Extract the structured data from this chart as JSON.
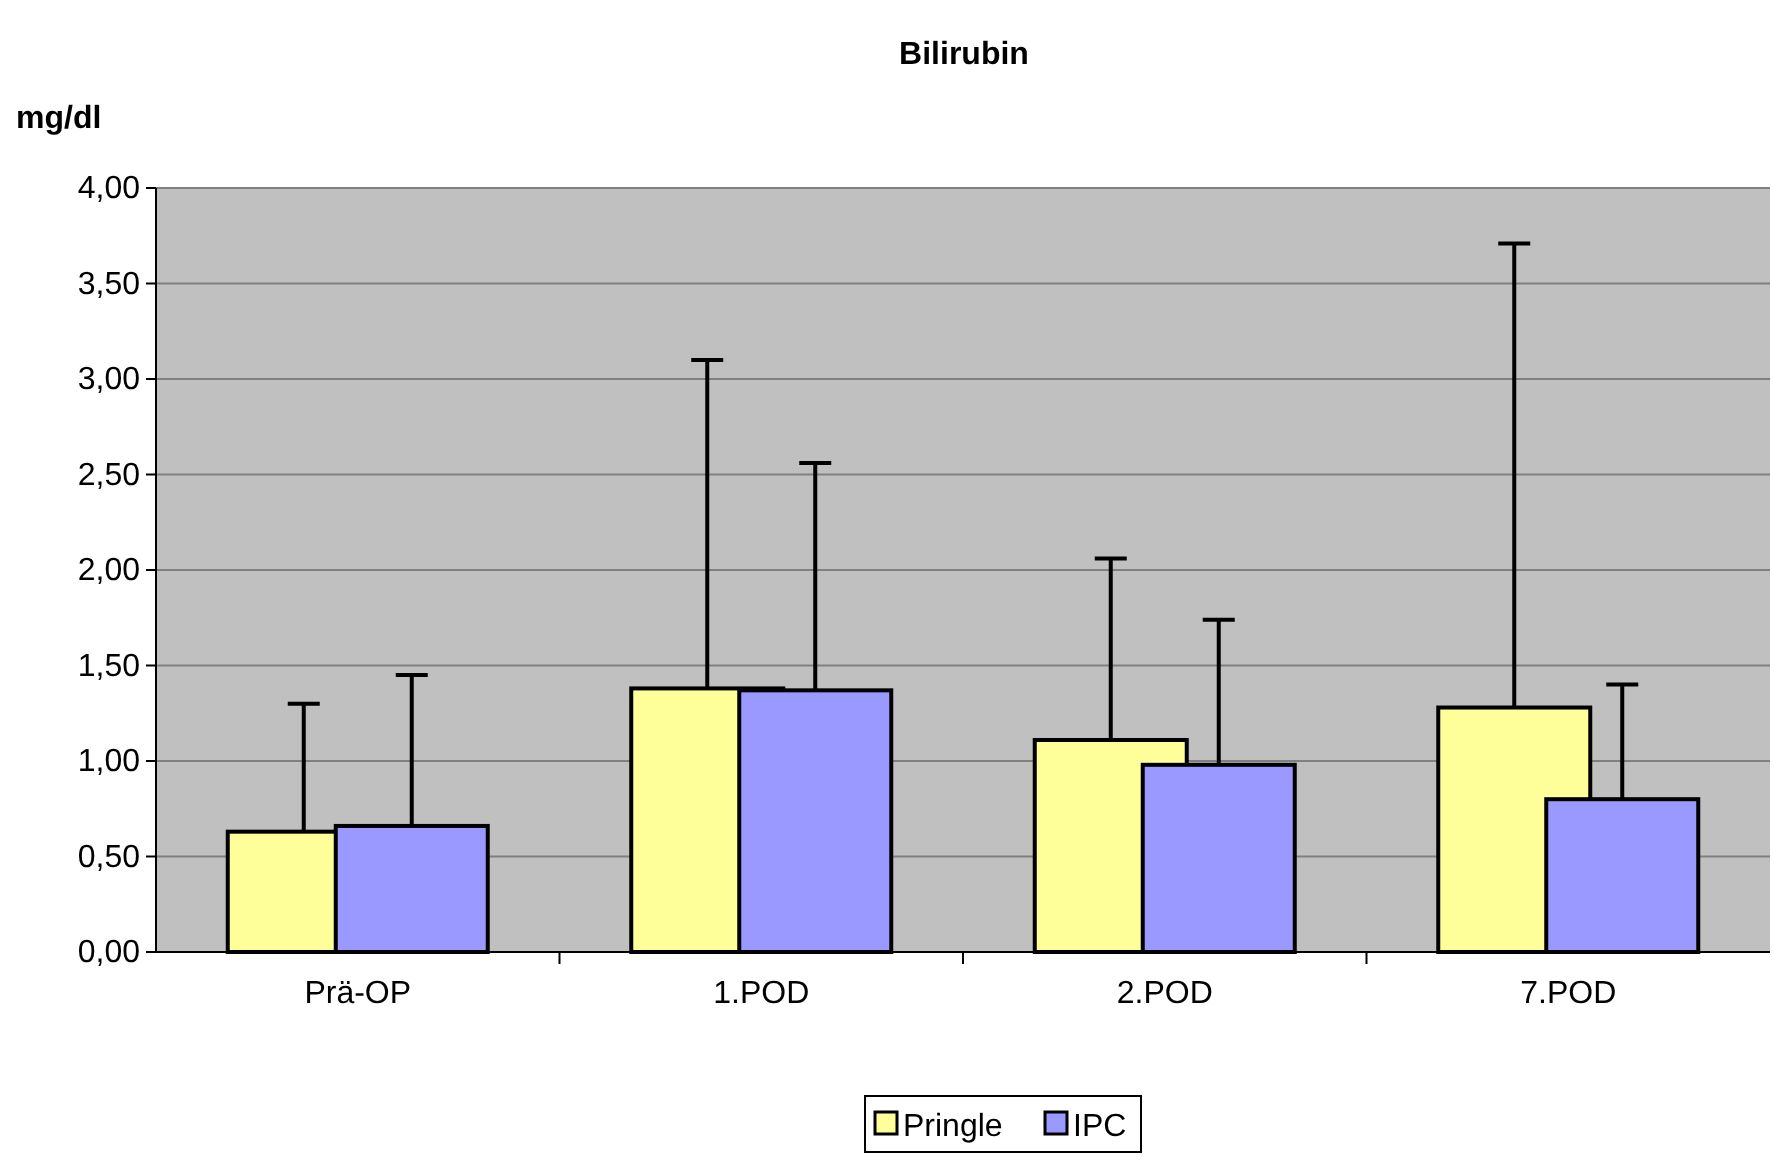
{
  "chart_data": {
    "type": "bar",
    "title": "Bilirubin",
    "ylabel": "mg/dl",
    "categories": [
      "Prä-OP",
      "1.POD",
      "2.POD",
      "7.POD"
    ],
    "series": [
      {
        "name": "Pringle",
        "color": "#ffff99",
        "values": [
          0.63,
          1.38,
          1.11,
          1.28
        ],
        "errors": [
          [
            0.63,
            1.3
          ],
          [
            1.38,
            3.1
          ],
          [
            1.11,
            2.06
          ],
          [
            1.28,
            3.71
          ]
        ]
      },
      {
        "name": "IPC",
        "color": "#9999ff",
        "values": [
          0.66,
          1.37,
          0.98,
          0.8
        ],
        "errors": [
          [
            0.66,
            1.45
          ],
          [
            1.37,
            2.56
          ],
          [
            0.98,
            1.74
          ],
          [
            0.8,
            1.4
          ]
        ]
      }
    ],
    "ylim": [
      0,
      4
    ],
    "yticks": [
      {
        "value": 0,
        "label": "0,00"
      },
      {
        "value": 0.5,
        "label": "0,50"
      },
      {
        "value": 1,
        "label": "1,00"
      },
      {
        "value": 1.5,
        "label": "1,50"
      },
      {
        "value": 2,
        "label": "2,00"
      },
      {
        "value": 2.5,
        "label": "2,50"
      },
      {
        "value": 3,
        "label": "3,00"
      },
      {
        "value": 3.5,
        "label": "3,50"
      },
      {
        "value": 4,
        "label": "4,00"
      }
    ],
    "grid": "y",
    "legend": "bottom"
  }
}
